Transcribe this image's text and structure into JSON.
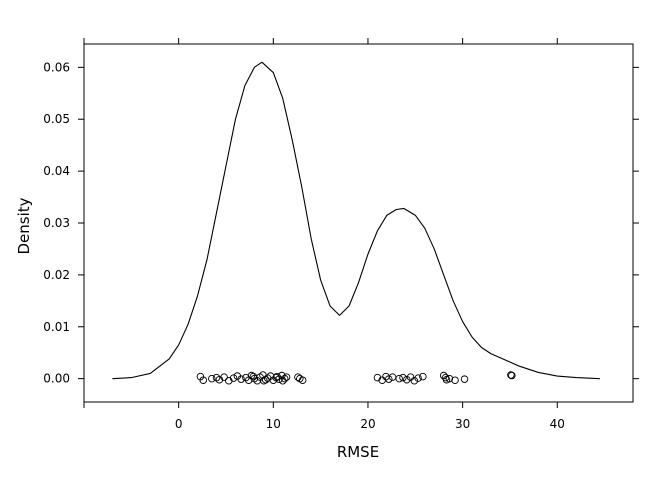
{
  "chart_data": {
    "type": "density",
    "title": "",
    "xlabel": "RMSE",
    "ylabel": "Density",
    "xlim": [
      -10,
      48
    ],
    "ylim": [
      -0.0045,
      0.0645
    ],
    "x_ticks": [
      0,
      10,
      20,
      30,
      40
    ],
    "y_ticks": [
      0.0,
      0.01,
      0.02,
      0.03,
      0.04,
      0.05,
      0.06
    ],
    "x_tick_labels": [
      "0",
      "10",
      "20",
      "30",
      "40"
    ],
    "y_tick_labels": [
      "0.00",
      "0.01",
      "0.02",
      "0.03",
      "0.04",
      "0.05",
      "0.06"
    ],
    "grid": false,
    "density_curve": {
      "x": [
        -7,
        -5,
        -3,
        -1,
        0,
        1,
        2,
        3,
        4,
        5,
        6,
        7,
        8,
        8.8,
        10,
        11,
        12,
        13,
        14,
        15,
        16,
        17,
        18,
        19,
        20,
        21,
        22,
        23,
        23.8,
        25,
        26,
        27,
        28,
        29,
        30,
        31,
        32,
        33,
        34,
        35,
        36,
        38,
        40,
        42,
        44.5
      ],
      "y": [
        0.0,
        0.0002,
        0.001,
        0.0038,
        0.0065,
        0.0105,
        0.016,
        0.023,
        0.032,
        0.041,
        0.05,
        0.0565,
        0.06,
        0.061,
        0.059,
        0.054,
        0.046,
        0.037,
        0.027,
        0.019,
        0.014,
        0.0122,
        0.014,
        0.0185,
        0.024,
        0.0285,
        0.0315,
        0.0326,
        0.0328,
        0.0315,
        0.029,
        0.025,
        0.02,
        0.015,
        0.011,
        0.008,
        0.006,
        0.0048,
        0.004,
        0.0032,
        0.0024,
        0.0012,
        0.0005,
        0.0002,
        0.0
      ]
    },
    "rug_points": [
      {
        "x": 2.3,
        "y": 0.0004
      },
      {
        "x": 2.6,
        "y": -0.0003
      },
      {
        "x": 3.5,
        "y": 0.0
      },
      {
        "x": 4.0,
        "y": 0.0002
      },
      {
        "x": 4.3,
        "y": -0.0002
      },
      {
        "x": 4.8,
        "y": 0.0003
      },
      {
        "x": 5.3,
        "y": -0.0004
      },
      {
        "x": 5.8,
        "y": 0.0001
      },
      {
        "x": 6.2,
        "y": 0.0005
      },
      {
        "x": 6.6,
        "y": -0.0001
      },
      {
        "x": 7.1,
        "y": 0.0002
      },
      {
        "x": 7.4,
        "y": -0.0003
      },
      {
        "x": 7.7,
        "y": 0.0006
      },
      {
        "x": 8.0,
        "y": 0.0
      },
      {
        "x": 8.3,
        "y": -0.0004
      },
      {
        "x": 8.6,
        "y": 0.0003
      },
      {
        "x": 8.9,
        "y": 0.0007
      },
      {
        "x": 9.2,
        "y": -0.0002
      },
      {
        "x": 9.4,
        "y": 0.0001
      },
      {
        "x": 9.7,
        "y": 0.0005
      },
      {
        "x": 10.0,
        "y": -0.0003
      },
      {
        "x": 10.3,
        "y": 0.0002
      },
      {
        "x": 10.6,
        "y": -0.0001
      },
      {
        "x": 10.9,
        "y": 0.0006
      },
      {
        "x": 11.2,
        "y": 0.0
      },
      {
        "x": 11.4,
        "y": 0.0003
      },
      {
        "x": 12.6,
        "y": 0.0003
      },
      {
        "x": 13.1,
        "y": -0.0003
      },
      {
        "x": 7.9,
        "y": 0.0004
      },
      {
        "x": 9.0,
        "y": -0.0004
      },
      {
        "x": 10.4,
        "y": 0.0004
      },
      {
        "x": 11.0,
        "y": -0.0004
      },
      {
        "x": 12.8,
        "y": 0.0
      },
      {
        "x": 21.0,
        "y": 0.0002
      },
      {
        "x": 21.5,
        "y": -0.0003
      },
      {
        "x": 21.9,
        "y": 0.0004
      },
      {
        "x": 22.2,
        "y": -0.0001
      },
      {
        "x": 22.6,
        "y": 0.0003
      },
      {
        "x": 23.3,
        "y": 0.0
      },
      {
        "x": 23.7,
        "y": 0.0002
      },
      {
        "x": 24.1,
        "y": -0.0002
      },
      {
        "x": 24.5,
        "y": 0.0003
      },
      {
        "x": 24.9,
        "y": -0.0004
      },
      {
        "x": 25.3,
        "y": 0.0001
      },
      {
        "x": 25.8,
        "y": 0.0004
      },
      {
        "x": 28.0,
        "y": 0.0006
      },
      {
        "x": 28.2,
        "y": 0.0002
      },
      {
        "x": 28.3,
        "y": -0.0002
      },
      {
        "x": 28.6,
        "y": 0.0
      },
      {
        "x": 29.2,
        "y": -0.0003
      },
      {
        "x": 30.2,
        "y": -0.0001
      },
      {
        "x": 35.1,
        "y": 0.0007
      },
      {
        "x": 35.2,
        "y": 0.0006
      }
    ]
  }
}
